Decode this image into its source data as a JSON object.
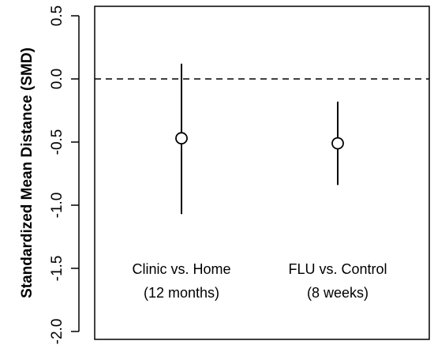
{
  "chart_data": {
    "type": "scatter",
    "title": "",
    "xlabel": "",
    "ylabel": "Standardized Mean Distance (SMD)",
    "ylim": [
      -2.0,
      0.5
    ],
    "yticks": [
      "-2.0",
      "-1.5",
      "-1.0",
      "-0.5",
      "0.0",
      "0.5"
    ],
    "reference_line": {
      "y": 0.0,
      "style": "dashed"
    },
    "grid": false,
    "legend": "none",
    "categories": [
      {
        "line1": "Clinic vs. Home",
        "line2": "(12 months)"
      },
      {
        "line1": "FLU vs. Control",
        "line2": "(8 weeks)"
      }
    ],
    "points": [
      {
        "estimate": -0.47,
        "lower": -1.07,
        "upper": 0.12
      },
      {
        "estimate": -0.51,
        "lower": -0.84,
        "upper": -0.18
      }
    ],
    "marker": "open-circle"
  }
}
